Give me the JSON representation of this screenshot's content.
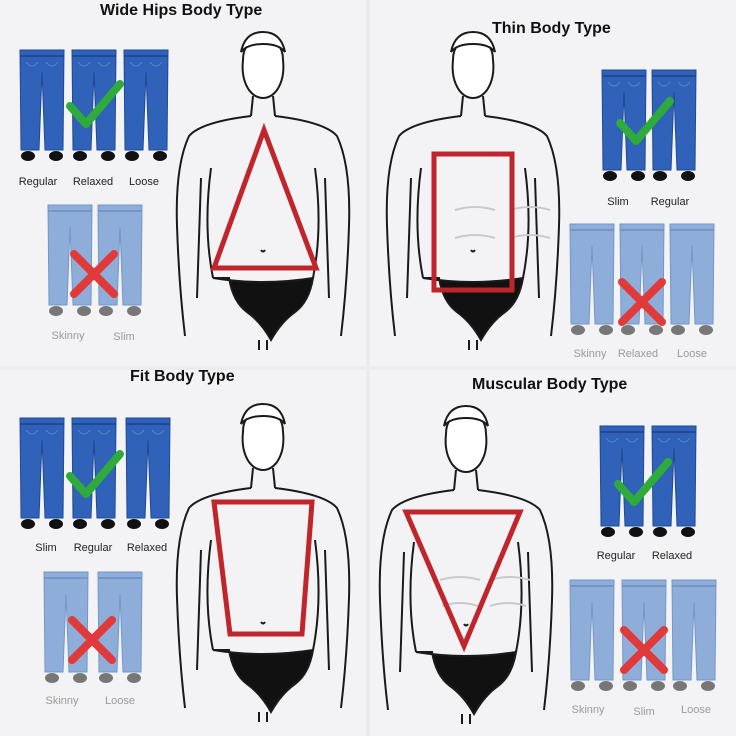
{
  "colors": {
    "jeans_good": "#2f62b8",
    "jeans_bad": "#8eaed9",
    "check": "#2eab3b",
    "cross": "#e03a3a",
    "shape": "#c0252b",
    "background": "#f3f3f5"
  },
  "panels": [
    {
      "title": "Wide Hips Body Type",
      "body_shape": "triangle",
      "good_labels": [
        "Regular",
        "Relaxed",
        "Loose"
      ],
      "bad_labels": [
        "Skinny",
        "Slim"
      ],
      "icons": [
        "check-icon",
        "cross-icon"
      ]
    },
    {
      "title": "Thin Body Type",
      "body_shape": "rectangle",
      "good_labels": [
        "Slim",
        "Regular"
      ],
      "bad_labels": [
        "Skinny",
        "Relaxed",
        "Loose"
      ],
      "icons": [
        "check-icon",
        "cross-icon"
      ]
    },
    {
      "title": "Fit Body Type",
      "body_shape": "trapezoid",
      "good_labels": [
        "Slim",
        "Regular",
        "Relaxed"
      ],
      "bad_labels": [
        "Skinny",
        "Loose"
      ],
      "icons": [
        "check-icon",
        "cross-icon"
      ]
    },
    {
      "title": "Muscular Body Type",
      "body_shape": "inverted-triangle",
      "good_labels": [
        "Regular",
        "Relaxed"
      ],
      "bad_labels": [
        "Skinny",
        "Slim",
        "Loose"
      ],
      "icons": [
        "check-icon",
        "cross-icon"
      ]
    }
  ]
}
